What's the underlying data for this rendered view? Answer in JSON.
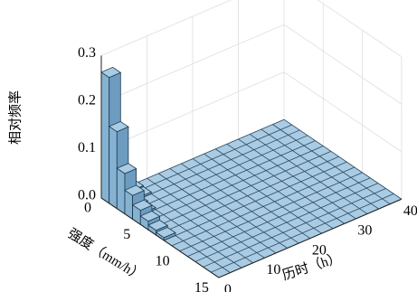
{
  "chart_data": {
    "type": "3d-bar",
    "title": "",
    "xlabel": "强度（mm/h）",
    "ylabel": "历时（h）",
    "zlabel": "相对频率",
    "x_range": [
      0,
      15
    ],
    "y_range": [
      0,
      40
    ],
    "zlim": [
      0,
      0.3
    ],
    "x_ticks": [
      "0",
      "5",
      "10",
      "15"
    ],
    "y_ticks": [
      "0",
      "10",
      "20",
      "30",
      "40"
    ],
    "z_ticks": [
      "0.0",
      "0.1",
      "0.2",
      "0.3"
    ],
    "grid": true,
    "bar_color": "#a9cbe4",
    "bins": [
      {
        "x": 0.5,
        "y": 1.25,
        "z": 0.265
      },
      {
        "x": 0.5,
        "y": 3.75,
        "z": 0.012
      },
      {
        "x": 0.5,
        "y": 6.25,
        "z": 0.006
      },
      {
        "x": 1.5,
        "y": 1.25,
        "z": 0.162
      },
      {
        "x": 1.5,
        "y": 3.75,
        "z": 0.01
      },
      {
        "x": 1.5,
        "y": 6.25,
        "z": 0.004
      },
      {
        "x": 2.5,
        "y": 1.25,
        "z": 0.085
      },
      {
        "x": 2.5,
        "y": 3.75,
        "z": 0.007
      },
      {
        "x": 3.5,
        "y": 1.25,
        "z": 0.05
      },
      {
        "x": 3.5,
        "y": 3.75,
        "z": 0.004
      },
      {
        "x": 4.5,
        "y": 1.25,
        "z": 0.03
      },
      {
        "x": 5.5,
        "y": 1.25,
        "z": 0.018
      },
      {
        "x": 6.5,
        "y": 1.25,
        "z": 0.01
      },
      {
        "x": 7.5,
        "y": 1.25,
        "z": 0.006
      }
    ]
  }
}
